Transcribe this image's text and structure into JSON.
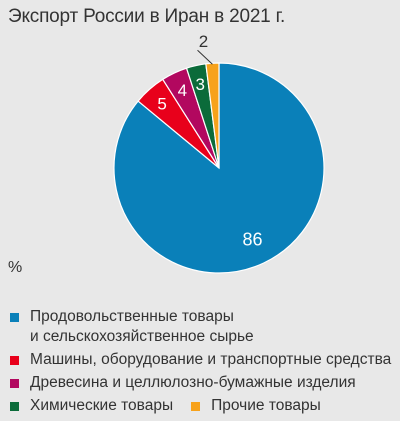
{
  "title": "Экспорт России в Иран в 2021 г.",
  "unit_label": "%",
  "legend": [
    {
      "lines": [
        "Продовольственные товары",
        "и сельскохозяйственное сырье"
      ],
      "color": "#0a80b9"
    },
    {
      "lines": [
        "Машины, оборудование и транспортные средства"
      ],
      "color": "#e8001b"
    },
    {
      "lines": [
        "Древесина и целлюлозно-бумажные изделия"
      ],
      "color": "#b2085f"
    },
    {
      "lines": [
        "Химические товары"
      ],
      "color": "#0b6b3a"
    },
    {
      "lines": [
        "Прочие товары"
      ],
      "color": "#f7a21b"
    }
  ],
  "chart_data": {
    "type": "pie",
    "title": "Экспорт России в Иран в 2021 г.",
    "unit": "%",
    "slices": [
      {
        "label": "Продовольственные товары и сельскохозяйственное сырье",
        "value": 86,
        "color": "#0a80b9"
      },
      {
        "label": "Машины, оборудование и транспортные средства",
        "value": 5,
        "color": "#e8001b"
      },
      {
        "label": "Древесина и целлюлозно-бумажные изделия",
        "value": 4,
        "color": "#b2085f"
      },
      {
        "label": "Химические товары",
        "value": 3,
        "color": "#0b6b3a"
      },
      {
        "label": "Прочие товары",
        "value": 2,
        "color": "#f7a21b"
      }
    ],
    "legend_position": "bottom"
  }
}
